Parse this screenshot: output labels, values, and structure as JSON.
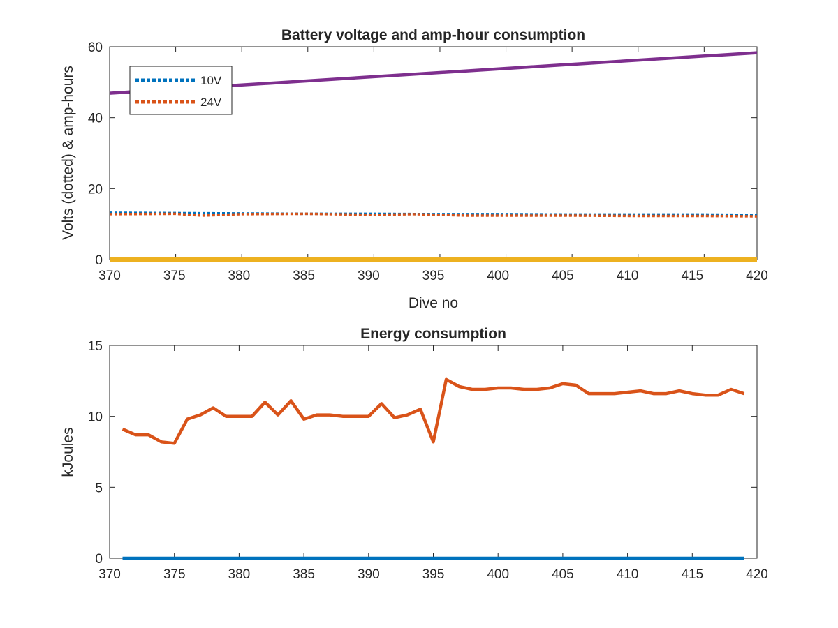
{
  "chart_data": [
    {
      "type": "line",
      "title": "Battery voltage and amp-hour consumption",
      "xlabel": "Dive no",
      "ylabel": "Volts (dotted) & amp-hours",
      "xlim": [
        370,
        419
      ],
      "ylim": [
        0,
        60
      ],
      "xticks": [
        370,
        375,
        380,
        385,
        390,
        395,
        400,
        405,
        410,
        415,
        420
      ],
      "yticks": [
        0,
        20,
        40,
        60
      ],
      "grid": false,
      "legend_position": "top-left",
      "series": [
        {
          "name": "10V",
          "style": "dotted",
          "color": "#0072BD",
          "x": [
            370,
            375,
            380,
            385,
            390,
            395,
            400,
            405,
            410,
            415,
            419
          ],
          "values": [
            13.2,
            13.1,
            13.0,
            12.9,
            12.9,
            12.8,
            12.8,
            12.7,
            12.7,
            12.7,
            12.6
          ]
        },
        {
          "name": "24V",
          "style": "dotted",
          "color": "#D95319",
          "x": [
            370,
            375,
            377,
            380,
            385,
            390,
            393,
            395,
            397,
            400,
            405,
            410,
            415,
            419
          ],
          "values": [
            12.8,
            12.9,
            12.4,
            12.8,
            12.9,
            12.6,
            12.8,
            12.6,
            12.4,
            12.4,
            12.4,
            12.3,
            12.3,
            12.2
          ]
        },
        {
          "style": "solid",
          "color": "#7E2F8E",
          "x": [
            370,
            419
          ],
          "values": [
            46.9,
            58.3
          ]
        },
        {
          "style": "solid",
          "color": "#EDB120",
          "x": [
            370,
            419
          ],
          "values": [
            0,
            0
          ]
        }
      ]
    },
    {
      "type": "line",
      "title": "Energy consumption",
      "xlabel": "",
      "ylabel": "kJoules",
      "xlim": [
        370,
        420
      ],
      "ylim": [
        0,
        15
      ],
      "xticks": [
        370,
        375,
        380,
        385,
        390,
        395,
        400,
        405,
        410,
        415,
        420
      ],
      "yticks": [
        0,
        5,
        10,
        15
      ],
      "grid": false,
      "series": [
        {
          "style": "solid",
          "color": "#D95319",
          "x": [
            371,
            372,
            373,
            374,
            375,
            376,
            377,
            378,
            379,
            380,
            381,
            382,
            383,
            384,
            385,
            386,
            387,
            388,
            389,
            390,
            391,
            392,
            393,
            394,
            395,
            396,
            397,
            398,
            399,
            400,
            401,
            402,
            403,
            404,
            405,
            406,
            407,
            408,
            409,
            410,
            411,
            412,
            413,
            414,
            415,
            416,
            417,
            418,
            419
          ],
          "values": [
            9.1,
            8.7,
            8.7,
            8.2,
            8.1,
            9.8,
            10.1,
            10.6,
            10.0,
            10.0,
            10.0,
            11.0,
            10.1,
            11.1,
            9.8,
            10.1,
            10.1,
            10.0,
            10.0,
            10.0,
            10.9,
            9.9,
            10.1,
            10.5,
            8.2,
            12.6,
            12.1,
            11.9,
            11.9,
            12.0,
            12.0,
            11.9,
            11.9,
            12.0,
            12.3,
            12.2,
            11.6,
            11.6,
            11.6,
            11.7,
            11.8,
            11.6,
            11.6,
            11.8,
            11.6,
            11.5,
            11.5,
            11.9,
            11.6
          ]
        },
        {
          "style": "solid",
          "color": "#0072BD",
          "x": [
            371,
            419
          ],
          "values": [
            0,
            0
          ]
        }
      ]
    }
  ]
}
